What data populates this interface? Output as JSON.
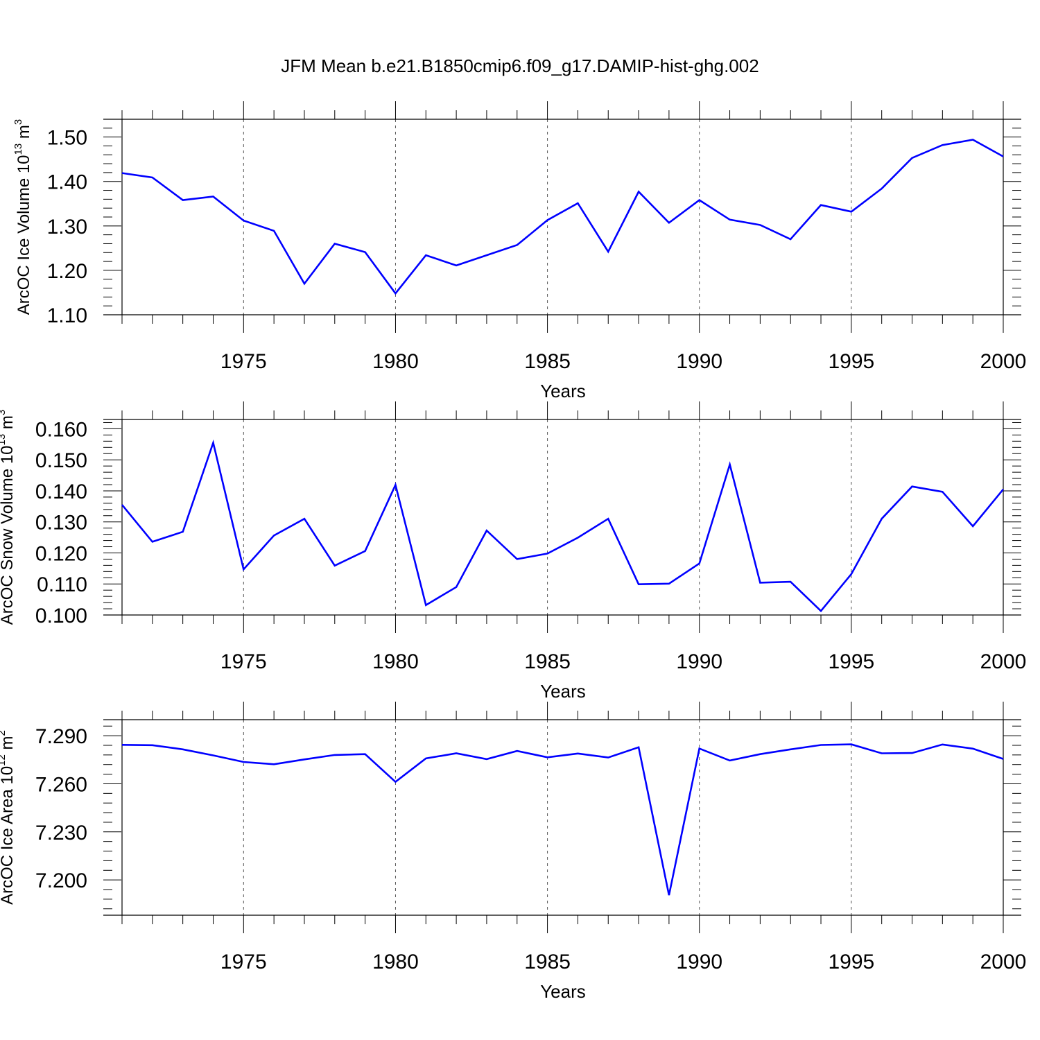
{
  "title": "JFM Mean b.e21.B1850cmip6.f09_g17.DAMIP-hist-ghg.002",
  "colors": {
    "line": "#0000ff",
    "axis": "#000000",
    "grid": "#555555"
  },
  "chart_data": [
    {
      "type": "line",
      "ylabel": {
        "main": "ArcOC Ice Volume 10",
        "exp": "13",
        "unit": " m",
        "unit_exp": "3"
      },
      "xlabel": "Years",
      "xlim": [
        1971,
        2000
      ],
      "ylim": [
        1.1,
        1.54
      ],
      "yticks": [
        1.1,
        1.2,
        1.3,
        1.4,
        1.5
      ],
      "ytick_labels": [
        "1.10",
        "1.20",
        "1.30",
        "1.40",
        "1.50"
      ],
      "xticks": [
        1975,
        1980,
        1985,
        1990,
        1995,
        2000
      ],
      "xtick_labels": [
        "1975",
        "1980",
        "1985",
        "1990",
        "1995",
        "2000"
      ],
      "x": [
        1971,
        1972,
        1973,
        1974,
        1975,
        1976,
        1977,
        1978,
        1979,
        1980,
        1981,
        1982,
        1983,
        1984,
        1985,
        1986,
        1987,
        1988,
        1989,
        1990,
        1991,
        1992,
        1993,
        1994,
        1995,
        1996,
        1997,
        1998,
        1999,
        2000
      ],
      "values": [
        1.419,
        1.409,
        1.358,
        1.366,
        1.312,
        1.289,
        1.17,
        1.26,
        1.241,
        1.148,
        1.234,
        1.211,
        1.234,
        1.257,
        1.313,
        1.351,
        1.242,
        1.377,
        1.307,
        1.358,
        1.314,
        1.302,
        1.27,
        1.347,
        1.332,
        1.384,
        1.453,
        1.482,
        1.494,
        1.456
      ]
    },
    {
      "type": "line",
      "ylabel": {
        "main": "ArcOC Snow Volume 10",
        "exp": "13",
        "unit": " m",
        "unit_exp": "3"
      },
      "xlabel": "Years",
      "xlim": [
        1971,
        2000
      ],
      "ylim": [
        0.1,
        0.163
      ],
      "yticks": [
        0.1,
        0.11,
        0.12,
        0.13,
        0.14,
        0.15,
        0.16
      ],
      "ytick_labels": [
        "0.100",
        "0.110",
        "0.120",
        "0.130",
        "0.140",
        "0.150",
        "0.160"
      ],
      "xticks": [
        1975,
        1980,
        1985,
        1990,
        1995,
        2000
      ],
      "xtick_labels": [
        "1975",
        "1980",
        "1985",
        "1990",
        "1995",
        "2000"
      ],
      "x": [
        1971,
        1972,
        1973,
        1974,
        1975,
        1976,
        1977,
        1978,
        1979,
        1980,
        1981,
        1982,
        1983,
        1984,
        1985,
        1986,
        1987,
        1988,
        1989,
        1990,
        1991,
        1992,
        1993,
        1994,
        1995,
        1996,
        1997,
        1998,
        1999,
        2000
      ],
      "values": [
        0.1355,
        0.1236,
        0.1268,
        0.1555,
        0.1147,
        0.1256,
        0.131,
        0.1159,
        0.1206,
        0.1419,
        0.1032,
        0.109,
        0.1272,
        0.118,
        0.1198,
        0.1249,
        0.131,
        0.1099,
        0.1101,
        0.1166,
        0.1485,
        0.1104,
        0.1107,
        0.1013,
        0.1132,
        0.131,
        0.1414,
        0.1397,
        0.1286,
        0.1405
      ]
    },
    {
      "type": "line",
      "ylabel": {
        "main": "ArcOC Ice Area 10",
        "exp": "12",
        "unit": " m",
        "unit_exp": "2"
      },
      "xlabel": "Years",
      "xlim": [
        1971,
        2000
      ],
      "ylim": [
        7.178,
        7.3
      ],
      "yticks": [
        7.2,
        7.23,
        7.26,
        7.29
      ],
      "ytick_labels": [
        "7.200",
        "7.230",
        "7.260",
        "7.290"
      ],
      "xticks": [
        1975,
        1980,
        1985,
        1990,
        1995,
        2000
      ],
      "xtick_labels": [
        "1975",
        "1980",
        "1985",
        "1990",
        "1995",
        "2000"
      ],
      "x": [
        1971,
        1972,
        1973,
        1974,
        1975,
        1976,
        1977,
        1978,
        1979,
        1980,
        1981,
        1982,
        1983,
        1984,
        1985,
        1986,
        1987,
        1988,
        1989,
        1990,
        1991,
        1992,
        1993,
        1994,
        1995,
        1996,
        1997,
        1998,
        1999,
        2000
      ],
      "values": [
        7.2843,
        7.2841,
        7.2815,
        7.2777,
        7.2736,
        7.2722,
        7.2752,
        7.278,
        7.2785,
        7.2612,
        7.2758,
        7.279,
        7.2754,
        7.2805,
        7.2765,
        7.2789,
        7.2764,
        7.2828,
        7.1905,
        7.282,
        7.2745,
        7.2785,
        7.2815,
        7.2842,
        7.2846,
        7.279,
        7.2792,
        7.2845,
        7.2819,
        7.2755
      ]
    }
  ]
}
